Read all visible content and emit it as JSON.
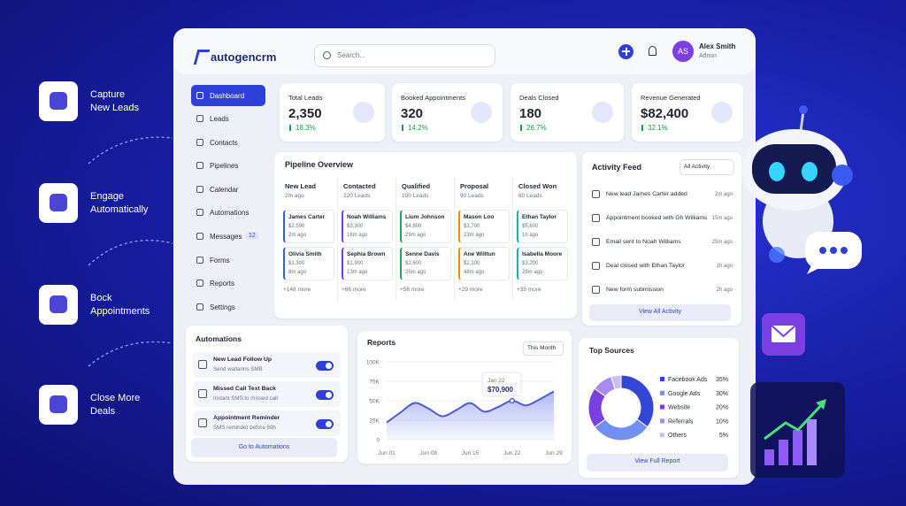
{
  "features": [
    {
      "label": [
        "Capture",
        "New Leads"
      ]
    },
    {
      "label": [
        "Engage",
        "Automatically"
      ]
    },
    {
      "label": [
        "Bock",
        "Appointments"
      ]
    },
    {
      "label": [
        "Close More",
        "Deals"
      ]
    }
  ],
  "brand": "autogencrm",
  "search_placeholder": "Search...",
  "user": {
    "initials": "AS",
    "name": "Alex Smith",
    "role": "Admin"
  },
  "nav": [
    {
      "label": "Dashboard"
    },
    {
      "label": "Leads"
    },
    {
      "label": "Contacts"
    },
    {
      "label": "Pipelines"
    },
    {
      "label": "Calendar"
    },
    {
      "label": "Automations"
    },
    {
      "label": "Messages",
      "badge": "12"
    },
    {
      "label": "Forms"
    },
    {
      "label": "Reports"
    },
    {
      "label": "Settings"
    }
  ],
  "stats": [
    {
      "label": "Total Leads",
      "value": "2,350",
      "change": "18.3%"
    },
    {
      "label": "Booked Appointments",
      "value": "320",
      "change": "14.2%"
    },
    {
      "label": "Deals Closed",
      "value": "180",
      "change": "26.7%"
    },
    {
      "label": "Revenue Generated",
      "value": "$82,400",
      "change": "32.1%"
    }
  ],
  "pipeline": {
    "title": "Pipeline Overview",
    "columns": [
      {
        "name": "New Lead",
        "meta": "2m ago",
        "cards": [
          {
            "name": "James Carter",
            "amount": "$2,590",
            "time": "2m ago"
          },
          {
            "name": "Olivia Smith",
            "amount": "$1,300",
            "time": "8m ago"
          }
        ],
        "more": "+148 more"
      },
      {
        "name": "Contacted",
        "meta": "220 Leads",
        "cards": [
          {
            "name": "Noah Williams",
            "amount": "$3,300",
            "time": "16m ago"
          },
          {
            "name": "Sephia Brown",
            "amount": "$1,900",
            "time": "13m ago"
          }
        ],
        "more": "+66 more"
      },
      {
        "name": "Qualified",
        "meta": "100 Leads",
        "cards": [
          {
            "name": "Lium Johnson",
            "amount": "$4,800",
            "time": "29m ago"
          },
          {
            "name": "Senne Davis",
            "amount": "$2,600",
            "time": "25m ago"
          }
        ],
        "more": "+56 more"
      },
      {
        "name": "Proposal",
        "meta": "90 Leads",
        "cards": [
          {
            "name": "Mason Loo",
            "amount": "$3,700",
            "time": "23m ago"
          },
          {
            "name": "Ane Willtun",
            "amount": "$2,100",
            "time": "48m ago"
          }
        ],
        "more": "+29 more"
      },
      {
        "name": "Closed Won",
        "meta": "80 Leads",
        "cards": [
          {
            "name": "Ethan Taylor",
            "amount": "$5,600",
            "time": "1h ago"
          },
          {
            "name": "Isabella Moore",
            "amount": "$3,200",
            "time": "28m ago"
          }
        ],
        "more": "+35 more"
      }
    ]
  },
  "activity": {
    "title": "Activity Feed",
    "filter": "All Activity",
    "items": [
      {
        "text": "New lead James Carter added",
        "time": "2m ago"
      },
      {
        "text": "Appointment booked with Gh Williams",
        "time": "15m ago"
      },
      {
        "text": "Email sent to Noah Williams",
        "time": "25m ago"
      },
      {
        "text": "Deal closed with Ethan Taylor",
        "time": "1h ago"
      },
      {
        "text": "New form submission",
        "time": "2h ago"
      }
    ],
    "button": "View All Activity"
  },
  "automations": {
    "title": "Automations",
    "items": [
      {
        "title": "New Lead Follow Up",
        "subtitle": "Send waltanns SMB"
      },
      {
        "title": "Missed Call Text Back",
        "subtitle": "Instant SMS to missed call"
      },
      {
        "title": "Appointment Reminder",
        "subtitle": "SMS reminder before 69h"
      }
    ],
    "button": "Go to Automations"
  },
  "reports": {
    "title": "Reports",
    "period": "This Month",
    "chart_data": {
      "type": "line",
      "categories": [
        "Jun 01",
        null,
        null,
        "Jun 08",
        null,
        null,
        "Jun 15",
        null,
        null,
        "Jun 22",
        null,
        null,
        "Jun 29"
      ],
      "values": [
        22000,
        35000,
        47000,
        40000,
        30000,
        38000,
        47000,
        36000,
        42000,
        50000,
        44000,
        52000,
        62000
      ],
      "color": "#4f5bd5",
      "ylim": [
        0,
        100000
      ],
      "yticks": [
        0,
        {
          "value": 25000,
          "label": "25K"
        },
        {
          "value": 50000,
          "label": "50K"
        },
        {
          "value": 75000,
          "label": "75K"
        },
        {
          "value": 100000,
          "label": "100K"
        }
      ]
    },
    "annotation": {
      "title": "Jan 22",
      "label": "$70,900"
    }
  },
  "top_sources": {
    "title": "Top Sources",
    "chart_data": {
      "type": "pie",
      "categories": [
        "Facebook Ads",
        "Google Ads",
        "Website",
        "Referrals",
        "Others"
      ],
      "values": [
        35,
        30,
        20,
        10,
        5
      ],
      "value_labels": [
        "35%",
        "30%",
        "20%",
        "10%",
        "5%"
      ],
      "colors": [
        "#3446d6",
        "#6f8ff2",
        "#7b3fe4",
        "#a68af5",
        "#cbbdf9"
      ]
    },
    "button": "View Full Report"
  }
}
